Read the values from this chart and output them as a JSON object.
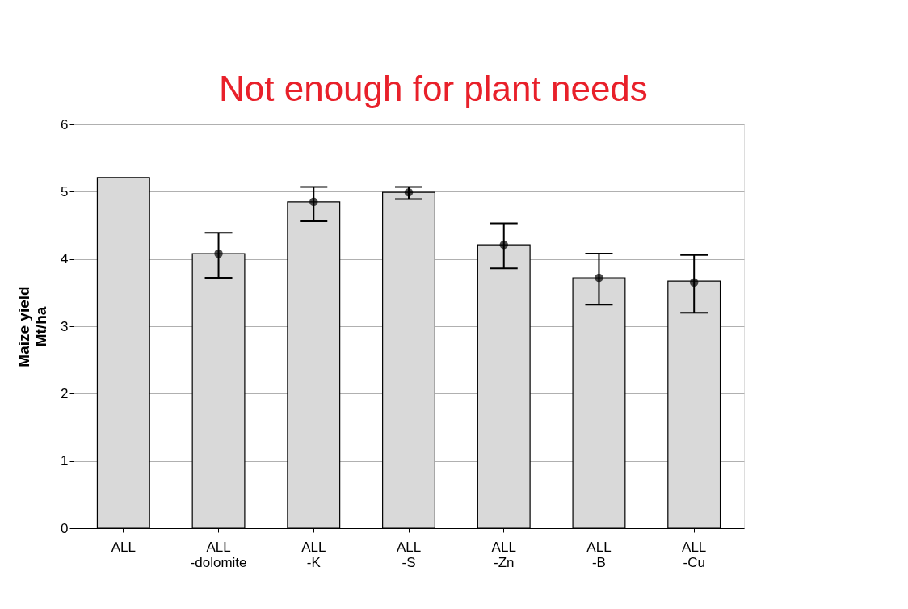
{
  "chart_data": {
    "type": "bar",
    "categories": [
      "ALL",
      "ALL\n-dolomite",
      "ALL\n-K",
      "ALL\n-S",
      "ALL\n-Zn",
      "ALL\n-B",
      "ALL\n-Cu"
    ],
    "ylabel": "Maize yield\nMt/ha",
    "ylim": [
      0,
      6
    ],
    "yticks": [
      0,
      1,
      2,
      3,
      4,
      5,
      6
    ],
    "grid": "y",
    "annotations": [
      "Not enough for plant needs"
    ],
    "series": [
      {
        "color": "#d9d9d9",
        "values": [
          5.21,
          4.08,
          4.85,
          4.99,
          4.21,
          3.72,
          3.67
        ]
      },
      {
        "type": "scatter",
        "color": "#000000",
        "marker": "circle",
        "x": [
          "ALL\n-dolomite",
          "ALL\n-K",
          "ALL\n-S",
          "ALL\n-Zn",
          "ALL\n-B",
          "ALL\n-Cu"
        ],
        "values": [
          4.08,
          4.85,
          4.99,
          4.21,
          3.72,
          3.65
        ],
        "errors": [
          [
            3.72,
            4.39
          ],
          [
            4.56,
            5.07
          ],
          [
            4.89,
            5.07
          ],
          [
            3.86,
            4.53
          ],
          [
            3.32,
            4.08
          ],
          [
            3.2,
            4.06
          ]
        ]
      }
    ]
  }
}
